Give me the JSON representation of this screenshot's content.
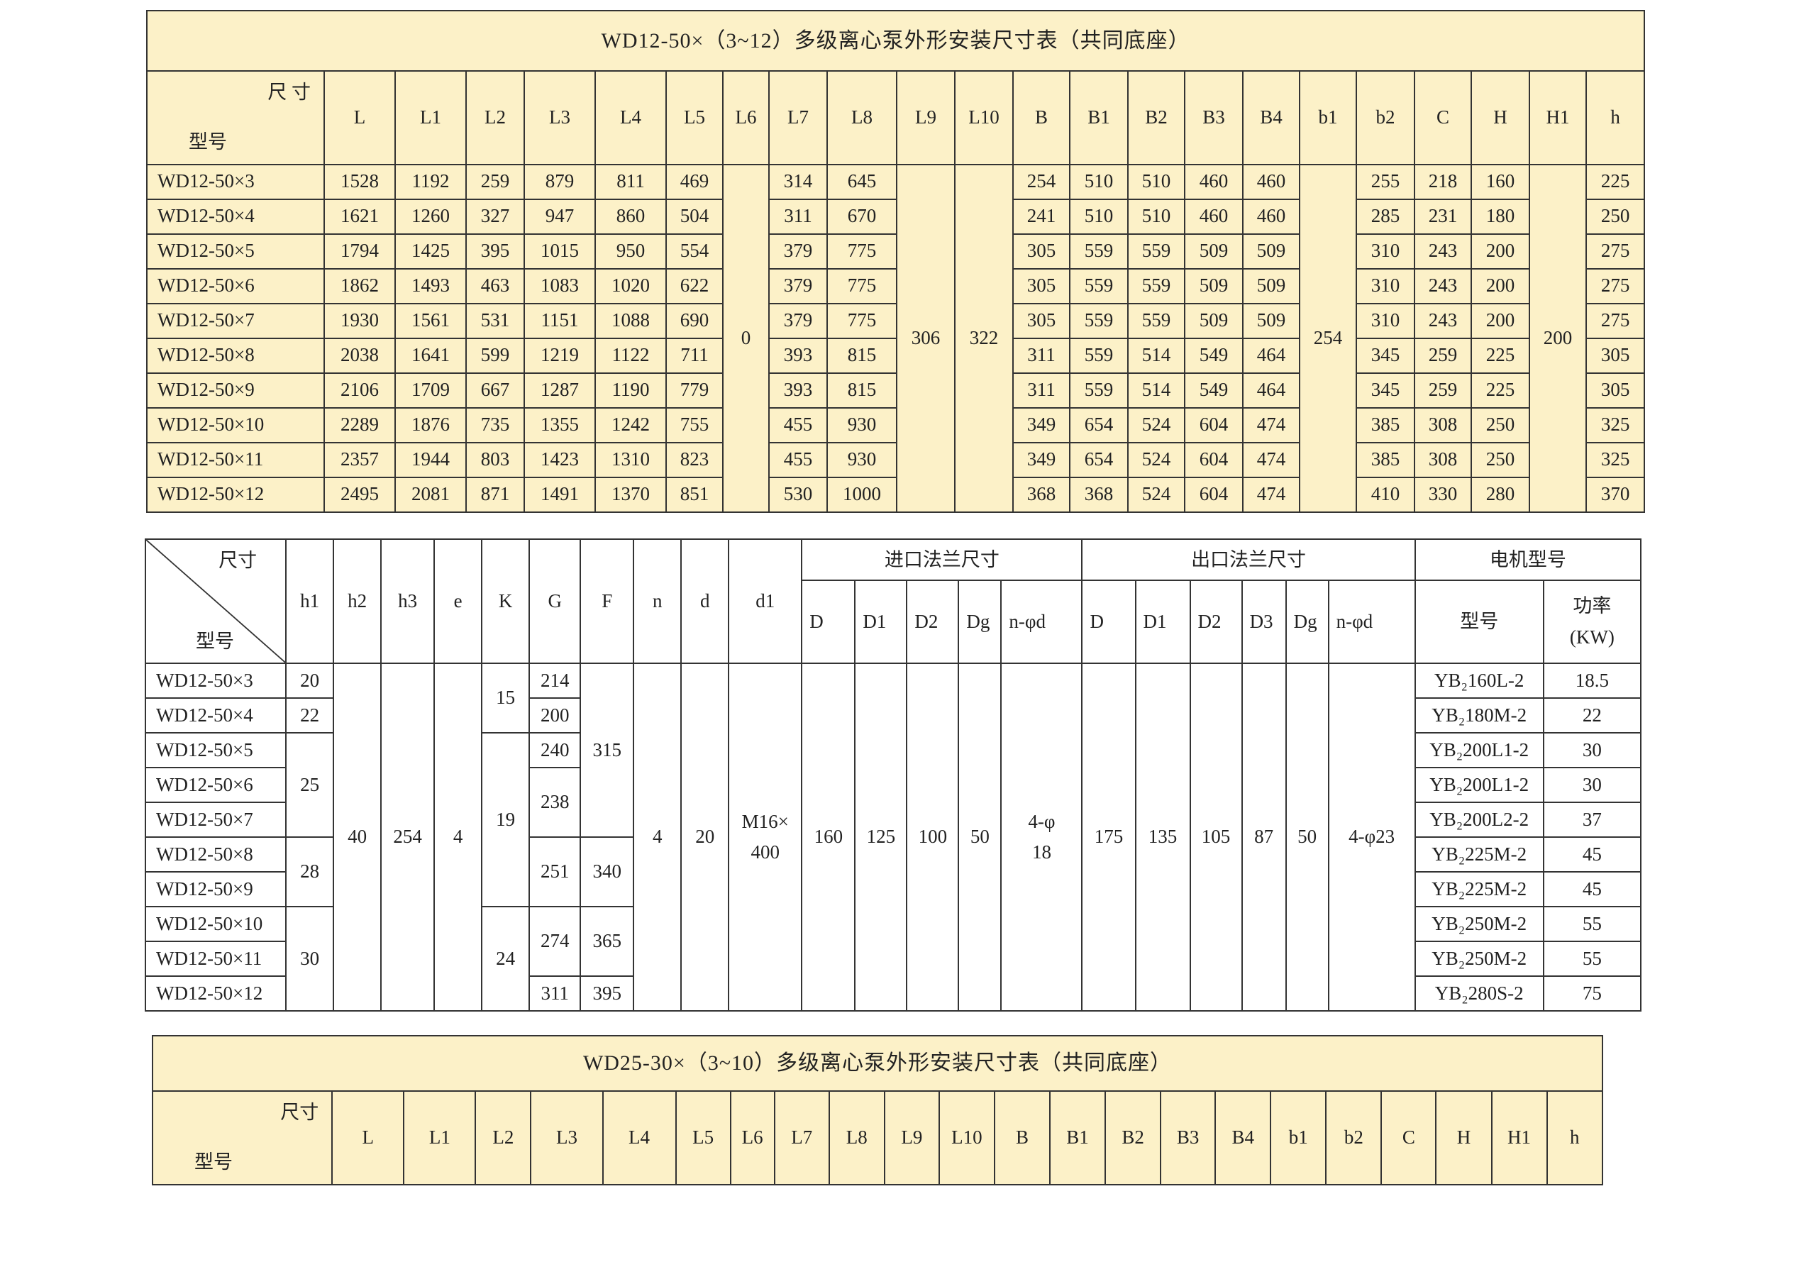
{
  "table1": {
    "title": "WD12-50×（3~12）多级离心泵外形安装尺寸表（共同底座）",
    "corner_top": "尺 寸",
    "corner_bottom": "型号",
    "headers": [
      "L",
      "L1",
      "L2",
      "L3",
      "L4",
      "L5",
      "L6",
      "L7",
      "L8",
      "L9",
      "L10",
      "B",
      "B1",
      "B2",
      "B3",
      "B4",
      "b1",
      "b2",
      "C",
      "H",
      "H1",
      "h"
    ],
    "columns": [
      [
        "WD12-50×3",
        "WD12-50×4",
        "WD12-50×5",
        "WD12-50×6",
        "WD12-50×7",
        "WD12-50×8",
        "WD12-50×9",
        "WD12-50×10",
        "WD12-50×11",
        "WD12-50×12"
      ],
      [
        "1528",
        "1621",
        "1794",
        "1862",
        "1930",
        "2038",
        "2106",
        "2289",
        "2357",
        "2495"
      ],
      [
        "1192",
        "1260",
        "1425",
        "1493",
        "1561",
        "1641",
        "1709",
        "1876",
        "1944",
        "2081"
      ],
      [
        "259",
        "327",
        "395",
        "463",
        "531",
        "599",
        "667",
        "735",
        "803",
        "871"
      ],
      [
        "879",
        "947",
        "1015",
        "1083",
        "1151",
        "1219",
        "1287",
        "1355",
        "1423",
        "1491"
      ],
      [
        "811",
        "860",
        "950",
        "1020",
        "1088",
        "1122",
        "1190",
        "1242",
        "1310",
        "1370"
      ],
      [
        "469",
        "504",
        "554",
        "622",
        "690",
        "711",
        "779",
        "755",
        "823",
        "851"
      ],
      [
        {
          "v": "0",
          "span": 10
        }
      ],
      [
        "314",
        "311",
        "379",
        "379",
        "379",
        "393",
        "393",
        "455",
        "455",
        "530"
      ],
      [
        "645",
        "670",
        "775",
        "775",
        "775",
        "815",
        "815",
        "930",
        "930",
        "1000"
      ],
      [
        {
          "v": "306",
          "span": 10
        }
      ],
      [
        {
          "v": "322",
          "span": 10
        }
      ],
      [
        "254",
        "241",
        "305",
        "305",
        "305",
        "311",
        "311",
        "349",
        "349",
        "368"
      ],
      [
        "510",
        "510",
        "559",
        "559",
        "559",
        "559",
        "559",
        "654",
        "654",
        "368"
      ],
      [
        "510",
        "510",
        "559",
        "559",
        "559",
        "514",
        "514",
        "524",
        "524",
        "524"
      ],
      [
        "460",
        "460",
        "509",
        "509",
        "509",
        "549",
        "549",
        "604",
        "604",
        "604"
      ],
      [
        "460",
        "460",
        "509",
        "509",
        "509",
        "464",
        "464",
        "474",
        "474",
        "474"
      ],
      [
        {
          "v": "254",
          "span": 10
        }
      ],
      [
        "255",
        "285",
        "310",
        "310",
        "310",
        "345",
        "345",
        "385",
        "385",
        "410"
      ],
      [
        "218",
        "231",
        "243",
        "243",
        "243",
        "259",
        "259",
        "308",
        "308",
        "330"
      ],
      [
        "160",
        "180",
        "200",
        "200",
        "200",
        "225",
        "225",
        "250",
        "250",
        "280"
      ],
      [
        {
          "v": "200",
          "span": 10
        }
      ],
      [
        "225",
        "250",
        "275",
        "275",
        "275",
        "305",
        "305",
        "325",
        "325",
        "370"
      ]
    ]
  },
  "table2": {
    "corner_top": "尺寸",
    "corner_bottom": "型号",
    "headers": [
      "h1",
      "h2",
      "h3",
      "e",
      "K",
      "G",
      "F",
      "n",
      "d",
      "d1"
    ],
    "inlet_group": "进口法兰尺寸",
    "inlet_headers": [
      "D",
      "D1",
      "D2",
      "Dg",
      "n-φd"
    ],
    "outlet_group": "出口法兰尺寸",
    "outlet_headers": [
      "D",
      "D1",
      "D2",
      "D3",
      "Dg",
      "n-φd"
    ],
    "motor_group": "电机型号",
    "motor_model_header": "型号",
    "motor_power_header": "功率\n(KW)",
    "columns": [
      [
        "WD12-50×3",
        "WD12-50×4",
        "WD12-50×5",
        "WD12-50×6",
        "WD12-50×7",
        "WD12-50×8",
        "WD12-50×9",
        "WD12-50×10",
        "WD12-50×11",
        "WD12-50×12"
      ],
      [
        "20",
        "22",
        {
          "v": "25",
          "span": 3
        },
        {
          "v": "28",
          "span": 2
        },
        {
          "v": "30",
          "span": 3
        }
      ],
      [
        {
          "v": "40",
          "span": 10
        }
      ],
      [
        {
          "v": "254",
          "span": 10
        }
      ],
      [
        {
          "v": "4",
          "span": 10
        }
      ],
      [
        {
          "v": "15",
          "span": 2
        },
        {
          "v": "19",
          "span": 5
        },
        {
          "v": "24",
          "span": 3
        }
      ],
      [
        "214",
        "200",
        "240",
        {
          "v": "238",
          "span": 2
        },
        {
          "v": "251",
          "span": 2
        },
        {
          "v": "274",
          "span": 2
        },
        "311"
      ],
      [
        {
          "v": "315",
          "span": 5
        },
        {
          "v": "340",
          "span": 2
        },
        {
          "v": "365",
          "span": 2
        },
        "395"
      ],
      [
        {
          "v": "4",
          "span": 10
        }
      ],
      [
        {
          "v": "20",
          "span": 10
        }
      ],
      [
        {
          "v": "M16×\n400",
          "span": 10
        }
      ],
      [
        {
          "v": "160",
          "span": 10
        }
      ],
      [
        {
          "v": "125",
          "span": 10
        }
      ],
      [
        {
          "v": "100",
          "span": 10
        }
      ],
      [
        {
          "v": "50",
          "span": 10
        }
      ],
      [
        {
          "v": "4-φ\n18",
          "span": 10
        }
      ],
      [
        {
          "v": "175",
          "span": 10
        }
      ],
      [
        {
          "v": "135",
          "span": 10
        }
      ],
      [
        {
          "v": "105",
          "span": 10
        }
      ],
      [
        {
          "v": "87",
          "span": 10
        }
      ],
      [
        {
          "v": "50",
          "span": 10
        }
      ],
      [
        {
          "v": "4-φ23",
          "span": 10
        }
      ],
      [
        "YB₂160L-2",
        "YB₂180M-2",
        "YB₂200L1-2",
        "YB₂200L1-2",
        "YB₂200L2-2",
        "YB₂225M-2",
        "YB₂225M-2",
        "YB₂250M-2",
        "YB₂250M-2",
        "YB₂280S-2"
      ],
      [
        "18.5",
        "22",
        "30",
        "30",
        "37",
        "45",
        "45",
        "55",
        "55",
        "75"
      ]
    ]
  },
  "table3": {
    "title": "WD25-30×（3~10）多级离心泵外形安装尺寸表（共同底座）",
    "corner_top": "尺寸",
    "corner_bottom": "型号",
    "headers": [
      "L",
      "L1",
      "L2",
      "L3",
      "L4",
      "L5",
      "L6",
      "L7",
      "L8",
      "L9",
      "L10",
      "B",
      "B1",
      "B2",
      "B3",
      "B4",
      "b1",
      "b2",
      "C",
      "H",
      "H1",
      "h"
    ]
  },
  "colors": {
    "table_background": "#fcf1c8",
    "border": "#333333"
  }
}
